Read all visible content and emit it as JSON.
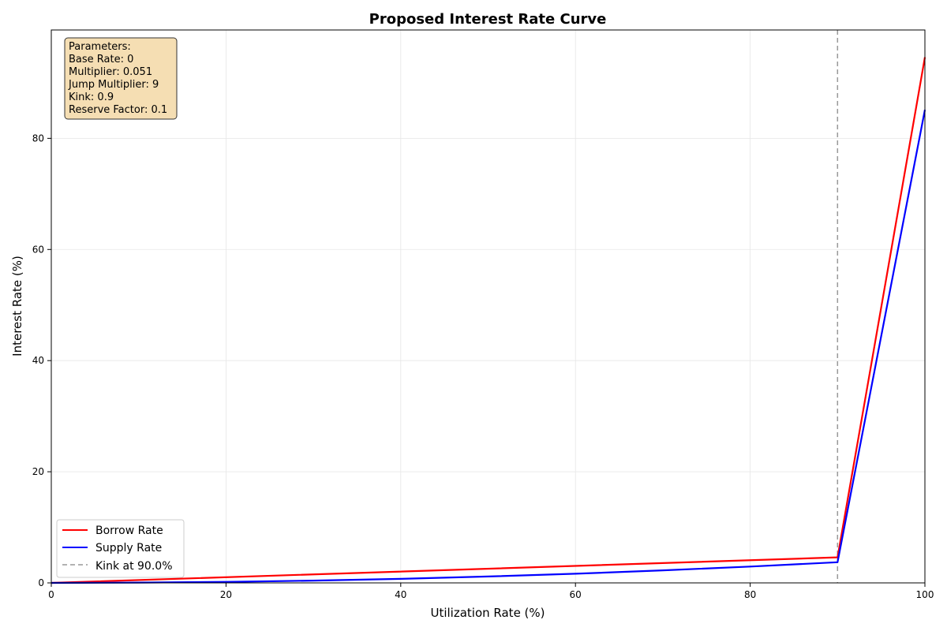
{
  "chart_data": {
    "type": "line",
    "title": "Proposed Interest Rate Curve",
    "xlabel": "Utilization Rate (%)",
    "ylabel": "Interest Rate (%)",
    "xlim": [
      0,
      100
    ],
    "ylim": [
      0,
      99.5
    ],
    "xticks": [
      0,
      20,
      40,
      60,
      80,
      100
    ],
    "yticks": [
      0,
      20,
      40,
      60,
      80
    ],
    "grid": true,
    "legend_position": "lower-left",
    "series": [
      {
        "name": "Borrow Rate",
        "color": "#ff0000",
        "x": [
          0,
          90,
          100
        ],
        "y": [
          0,
          4.59,
          94.59
        ]
      },
      {
        "name": "Supply Rate",
        "color": "#0000ff",
        "x": [
          0,
          10,
          20,
          30,
          40,
          50,
          60,
          70,
          80,
          90,
          100
        ],
        "y": [
          0,
          0.05,
          0.18,
          0.41,
          0.73,
          1.15,
          1.65,
          2.25,
          2.94,
          3.72,
          85.13
        ]
      }
    ],
    "reference_lines": [
      {
        "name": "Kink at 90.0%",
        "orientation": "vertical",
        "x": 90,
        "color": "#999999",
        "style": "dashed"
      }
    ],
    "annotation": {
      "lines": [
        "Parameters:",
        "Base Rate: 0",
        "Multiplier: 0.051",
        "Jump Multiplier: 9",
        "Kink: 0.9",
        "Reserve Factor: 0.1"
      ],
      "background": "#f5deb3",
      "position": "top-left"
    }
  }
}
